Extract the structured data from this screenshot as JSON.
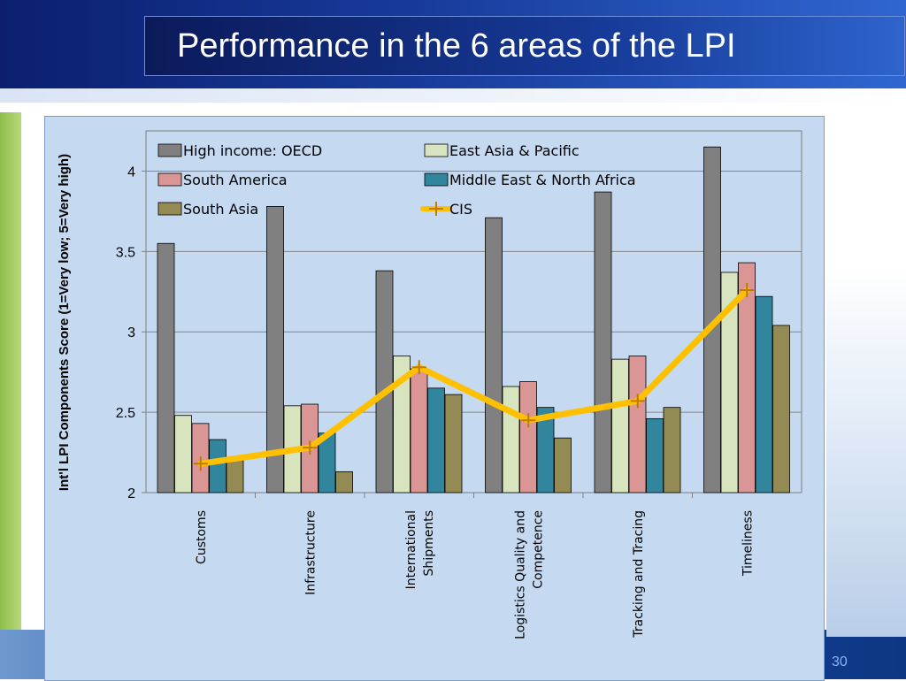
{
  "slide": {
    "title": "Performance in the 6 areas of the LPI",
    "page_number": "30"
  },
  "colors": {
    "header": "#173a9a",
    "plot_background": "#c5d9f1",
    "accent_green": "#8fbf4a"
  },
  "chart_data": {
    "type": "bar",
    "title": "",
    "xlabel": "",
    "ylabel": "Int'l LPI Components  Score (1=Very low; 5=Very high)",
    "ylim": [
      2,
      4.25
    ],
    "yticks": [
      "2",
      "2.5",
      "3",
      "3.5",
      "4"
    ],
    "grid": true,
    "legend_position": "top",
    "categories": [
      [
        "Customs"
      ],
      [
        "Infrastructure"
      ],
      [
        "International",
        "Shipments"
      ],
      [
        "Logistics Quality  and",
        "Competence"
      ],
      [
        "Tracking and Tracing"
      ],
      [
        "Timeliness"
      ]
    ],
    "series": [
      {
        "name": "High income: OECD",
        "type": "bar",
        "color": "#808080",
        "values": [
          3.55,
          3.78,
          3.38,
          3.71,
          3.87,
          4.15
        ]
      },
      {
        "name": "East Asia & Pacific",
        "type": "bar",
        "color": "#d7e4bd",
        "values": [
          2.48,
          2.54,
          2.85,
          2.66,
          2.83,
          3.37
        ]
      },
      {
        "name": "South America",
        "type": "bar",
        "color": "#d99694",
        "values": [
          2.43,
          2.55,
          2.77,
          2.69,
          2.85,
          3.43
        ]
      },
      {
        "name": "Middle East & North Africa",
        "type": "bar",
        "color": "#31859c",
        "values": [
          2.33,
          2.37,
          2.65,
          2.53,
          2.46,
          3.22
        ]
      },
      {
        "name": "South Asia",
        "type": "bar",
        "color": "#948a54",
        "values": [
          2.2,
          2.13,
          2.61,
          2.34,
          2.53,
          3.04
        ]
      },
      {
        "name": "CIS",
        "type": "line",
        "color": "#ffc000",
        "values": [
          2.18,
          2.28,
          2.78,
          2.45,
          2.57,
          3.26
        ]
      }
    ]
  }
}
